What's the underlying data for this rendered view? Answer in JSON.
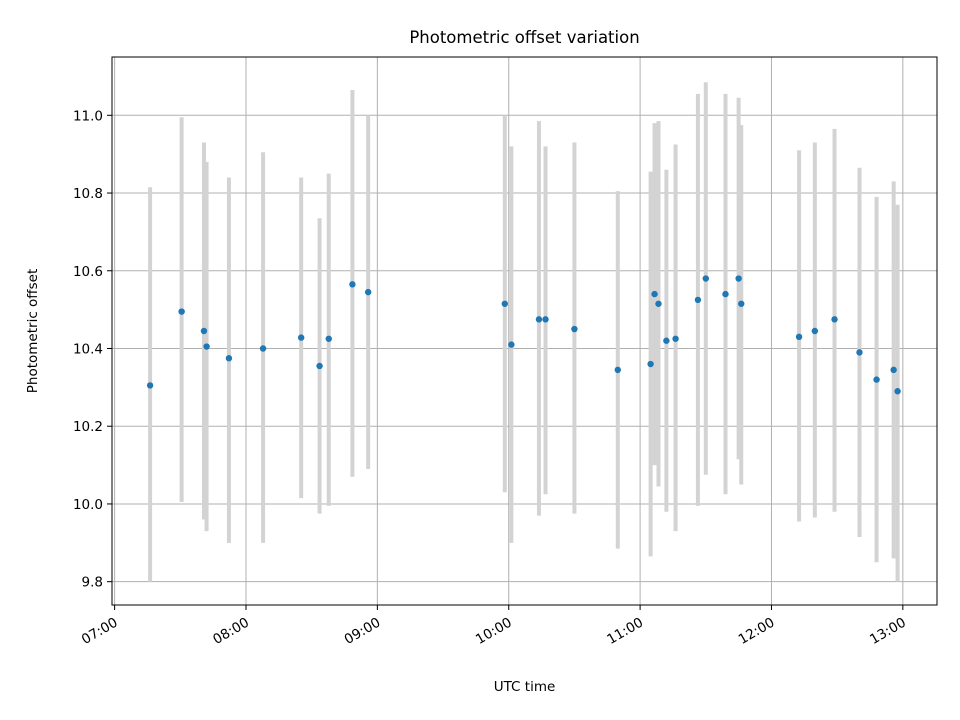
{
  "chart_data": {
    "type": "scatter",
    "title": "Photometric offset variation",
    "xlabel": "UTC time",
    "ylabel": "Photometric offset",
    "xlim_hours": [
      6.98,
      13.26
    ],
    "ylim": [
      9.74,
      11.15
    ],
    "x_ticks": [
      {
        "hour": 7,
        "label": "07:00"
      },
      {
        "hour": 8,
        "label": "08:00"
      },
      {
        "hour": 9,
        "label": "09:00"
      },
      {
        "hour": 10,
        "label": "10:00"
      },
      {
        "hour": 11,
        "label": "11:00"
      },
      {
        "hour": 12,
        "label": "12:00"
      },
      {
        "hour": 13,
        "label": "13:00"
      }
    ],
    "y_ticks": [
      {
        "value": 9.8,
        "label": "9.8"
      },
      {
        "value": 10.0,
        "label": "10.0"
      },
      {
        "value": 10.2,
        "label": "10.2"
      },
      {
        "value": 10.4,
        "label": "10.4"
      },
      {
        "value": 10.6,
        "label": "10.6"
      },
      {
        "value": 10.8,
        "label": "10.8"
      },
      {
        "value": 11.0,
        "label": "11.0"
      }
    ],
    "grid": true,
    "marker_color": "#1f77b4",
    "errorbar_color": "#d3d3d3",
    "points": [
      {
        "time": 7.27,
        "value": 10.305,
        "low": 9.8,
        "high": 10.815
      },
      {
        "time": 7.51,
        "value": 10.495,
        "low": 10.005,
        "high": 10.995
      },
      {
        "time": 7.68,
        "value": 10.445,
        "low": 9.96,
        "high": 10.93
      },
      {
        "time": 7.7,
        "value": 10.405,
        "low": 9.93,
        "high": 10.88
      },
      {
        "time": 7.87,
        "value": 10.375,
        "low": 9.9,
        "high": 10.84
      },
      {
        "time": 8.13,
        "value": 10.4,
        "low": 9.9,
        "high": 10.905
      },
      {
        "time": 8.42,
        "value": 10.428,
        "low": 10.015,
        "high": 10.84
      },
      {
        "time": 8.56,
        "value": 10.355,
        "low": 9.975,
        "high": 10.735
      },
      {
        "time": 8.63,
        "value": 10.425,
        "low": 9.995,
        "high": 10.85
      },
      {
        "time": 8.81,
        "value": 10.565,
        "low": 10.07,
        "high": 11.065
      },
      {
        "time": 8.93,
        "value": 10.545,
        "low": 10.09,
        "high": 11.0
      },
      {
        "time": 9.97,
        "value": 10.515,
        "low": 10.03,
        "high": 11.0
      },
      {
        "time": 10.02,
        "value": 10.41,
        "low": 9.9,
        "high": 10.92
      },
      {
        "time": 10.23,
        "value": 10.475,
        "low": 9.97,
        "high": 10.985
      },
      {
        "time": 10.28,
        "value": 10.475,
        "low": 10.025,
        "high": 10.92
      },
      {
        "time": 10.5,
        "value": 10.45,
        "low": 9.975,
        "high": 10.93
      },
      {
        "time": 10.83,
        "value": 10.345,
        "low": 9.885,
        "high": 10.805
      },
      {
        "time": 11.08,
        "value": 10.36,
        "low": 9.865,
        "high": 10.855
      },
      {
        "time": 11.11,
        "value": 10.54,
        "low": 10.1,
        "high": 10.98
      },
      {
        "time": 11.14,
        "value": 10.515,
        "low": 10.045,
        "high": 10.985
      },
      {
        "time": 11.2,
        "value": 10.42,
        "low": 9.98,
        "high": 10.86
      },
      {
        "time": 11.27,
        "value": 10.425,
        "low": 9.93,
        "high": 10.925
      },
      {
        "time": 11.44,
        "value": 10.525,
        "low": 9.995,
        "high": 11.055
      },
      {
        "time": 11.5,
        "value": 10.58,
        "low": 10.075,
        "high": 11.085
      },
      {
        "time": 11.65,
        "value": 10.54,
        "low": 10.025,
        "high": 11.055
      },
      {
        "time": 11.75,
        "value": 10.58,
        "low": 10.115,
        "high": 11.045
      },
      {
        "time": 11.77,
        "value": 10.515,
        "low": 10.05,
        "high": 10.975
      },
      {
        "time": 12.21,
        "value": 10.43,
        "low": 9.955,
        "high": 10.91
      },
      {
        "time": 12.33,
        "value": 10.445,
        "low": 9.965,
        "high": 10.93
      },
      {
        "time": 12.48,
        "value": 10.475,
        "low": 9.98,
        "high": 10.965
      },
      {
        "time": 12.67,
        "value": 10.39,
        "low": 9.915,
        "high": 10.865
      },
      {
        "time": 12.8,
        "value": 10.32,
        "low": 9.85,
        "high": 10.79
      },
      {
        "time": 12.93,
        "value": 10.345,
        "low": 9.86,
        "high": 10.83
      },
      {
        "time": 12.96,
        "value": 10.29,
        "low": 9.8,
        "high": 10.77
      }
    ]
  }
}
